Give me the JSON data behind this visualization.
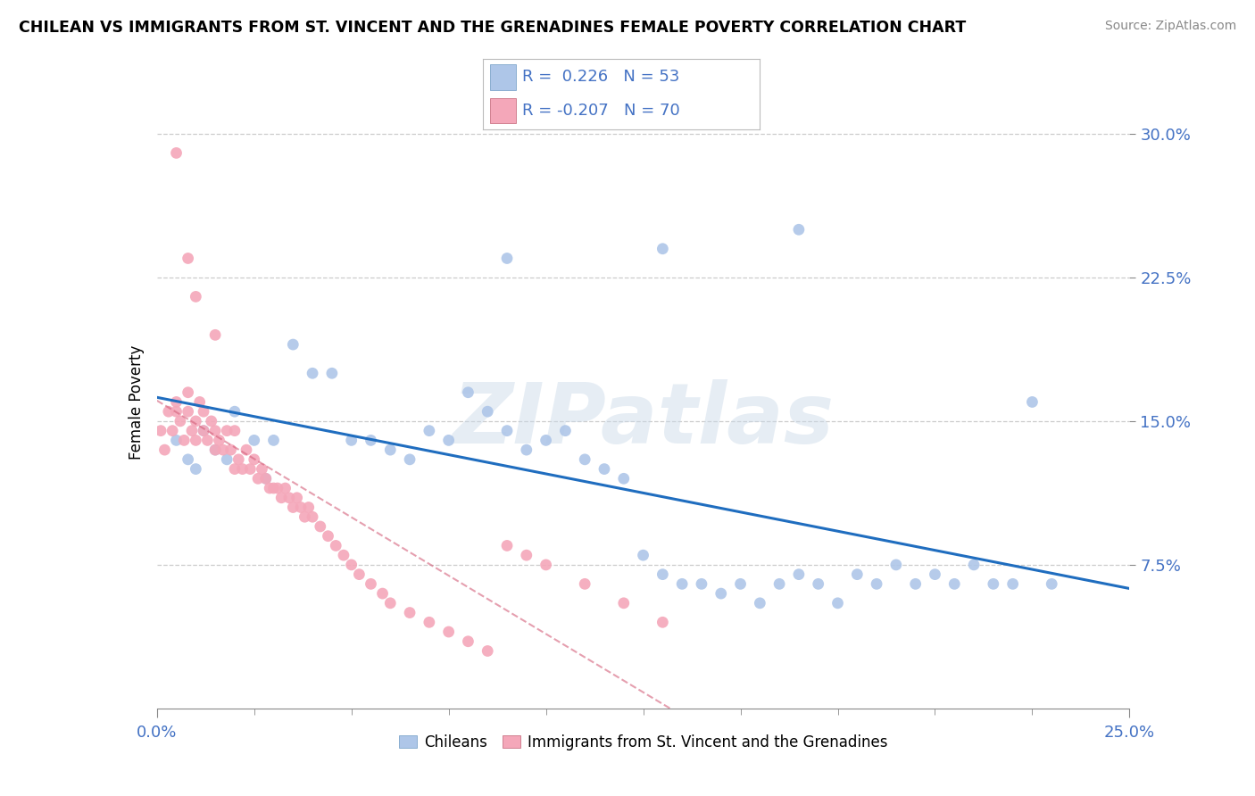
{
  "title": "CHILEAN VS IMMIGRANTS FROM ST. VINCENT AND THE GRENADINES FEMALE POVERTY CORRELATION CHART",
  "source": "Source: ZipAtlas.com",
  "ylabel": "Female Poverty",
  "ytick_vals": [
    0.075,
    0.15,
    0.225,
    0.3
  ],
  "ytick_labels": [
    "7.5%",
    "15.0%",
    "22.5%",
    "30.0%"
  ],
  "xlim": [
    0.0,
    0.25
  ],
  "ylim": [
    0.0,
    0.32
  ],
  "color_chilean": "#aec6e8",
  "color_immigrant": "#f4a7b9",
  "line_color_chilean": "#1f6dbf",
  "line_color_immigrant": "#d4607a",
  "watermark": "ZIPatlas",
  "tick_color": "#4472c4",
  "chilean_x": [
    0.005,
    0.008,
    0.01,
    0.012,
    0.015,
    0.018,
    0.02,
    0.025,
    0.028,
    0.03,
    0.035,
    0.04,
    0.045,
    0.05,
    0.055,
    0.06,
    0.065,
    0.07,
    0.075,
    0.08,
    0.085,
    0.09,
    0.095,
    0.1,
    0.105,
    0.11,
    0.115,
    0.12,
    0.125,
    0.13,
    0.135,
    0.14,
    0.145,
    0.15,
    0.155,
    0.16,
    0.165,
    0.17,
    0.175,
    0.18,
    0.185,
    0.19,
    0.195,
    0.2,
    0.205,
    0.21,
    0.215,
    0.22,
    0.225,
    0.23,
    0.165,
    0.13,
    0.09
  ],
  "chilean_y": [
    0.14,
    0.13,
    0.125,
    0.145,
    0.135,
    0.13,
    0.155,
    0.14,
    0.12,
    0.14,
    0.19,
    0.175,
    0.175,
    0.14,
    0.14,
    0.135,
    0.13,
    0.145,
    0.14,
    0.165,
    0.155,
    0.145,
    0.135,
    0.14,
    0.145,
    0.13,
    0.125,
    0.12,
    0.08,
    0.07,
    0.065,
    0.065,
    0.06,
    0.065,
    0.055,
    0.065,
    0.07,
    0.065,
    0.055,
    0.07,
    0.065,
    0.075,
    0.065,
    0.07,
    0.065,
    0.075,
    0.065,
    0.065,
    0.16,
    0.065,
    0.25,
    0.24,
    0.235
  ],
  "immigrant_x": [
    0.001,
    0.002,
    0.003,
    0.004,
    0.005,
    0.005,
    0.006,
    0.007,
    0.008,
    0.008,
    0.009,
    0.01,
    0.01,
    0.011,
    0.012,
    0.012,
    0.013,
    0.014,
    0.015,
    0.015,
    0.016,
    0.017,
    0.018,
    0.019,
    0.02,
    0.02,
    0.021,
    0.022,
    0.023,
    0.024,
    0.025,
    0.026,
    0.027,
    0.028,
    0.029,
    0.03,
    0.031,
    0.032,
    0.033,
    0.034,
    0.035,
    0.036,
    0.037,
    0.038,
    0.039,
    0.04,
    0.042,
    0.044,
    0.046,
    0.048,
    0.05,
    0.052,
    0.055,
    0.058,
    0.06,
    0.065,
    0.07,
    0.075,
    0.08,
    0.085,
    0.09,
    0.095,
    0.1,
    0.11,
    0.12,
    0.13,
    0.005,
    0.008,
    0.01,
    0.015
  ],
  "immigrant_y": [
    0.145,
    0.135,
    0.155,
    0.145,
    0.155,
    0.16,
    0.15,
    0.14,
    0.155,
    0.165,
    0.145,
    0.15,
    0.14,
    0.16,
    0.145,
    0.155,
    0.14,
    0.15,
    0.145,
    0.135,
    0.14,
    0.135,
    0.145,
    0.135,
    0.125,
    0.145,
    0.13,
    0.125,
    0.135,
    0.125,
    0.13,
    0.12,
    0.125,
    0.12,
    0.115,
    0.115,
    0.115,
    0.11,
    0.115,
    0.11,
    0.105,
    0.11,
    0.105,
    0.1,
    0.105,
    0.1,
    0.095,
    0.09,
    0.085,
    0.08,
    0.075,
    0.07,
    0.065,
    0.06,
    0.055,
    0.05,
    0.045,
    0.04,
    0.035,
    0.03,
    0.085,
    0.08,
    0.075,
    0.065,
    0.055,
    0.045,
    0.29,
    0.235,
    0.215,
    0.195
  ]
}
